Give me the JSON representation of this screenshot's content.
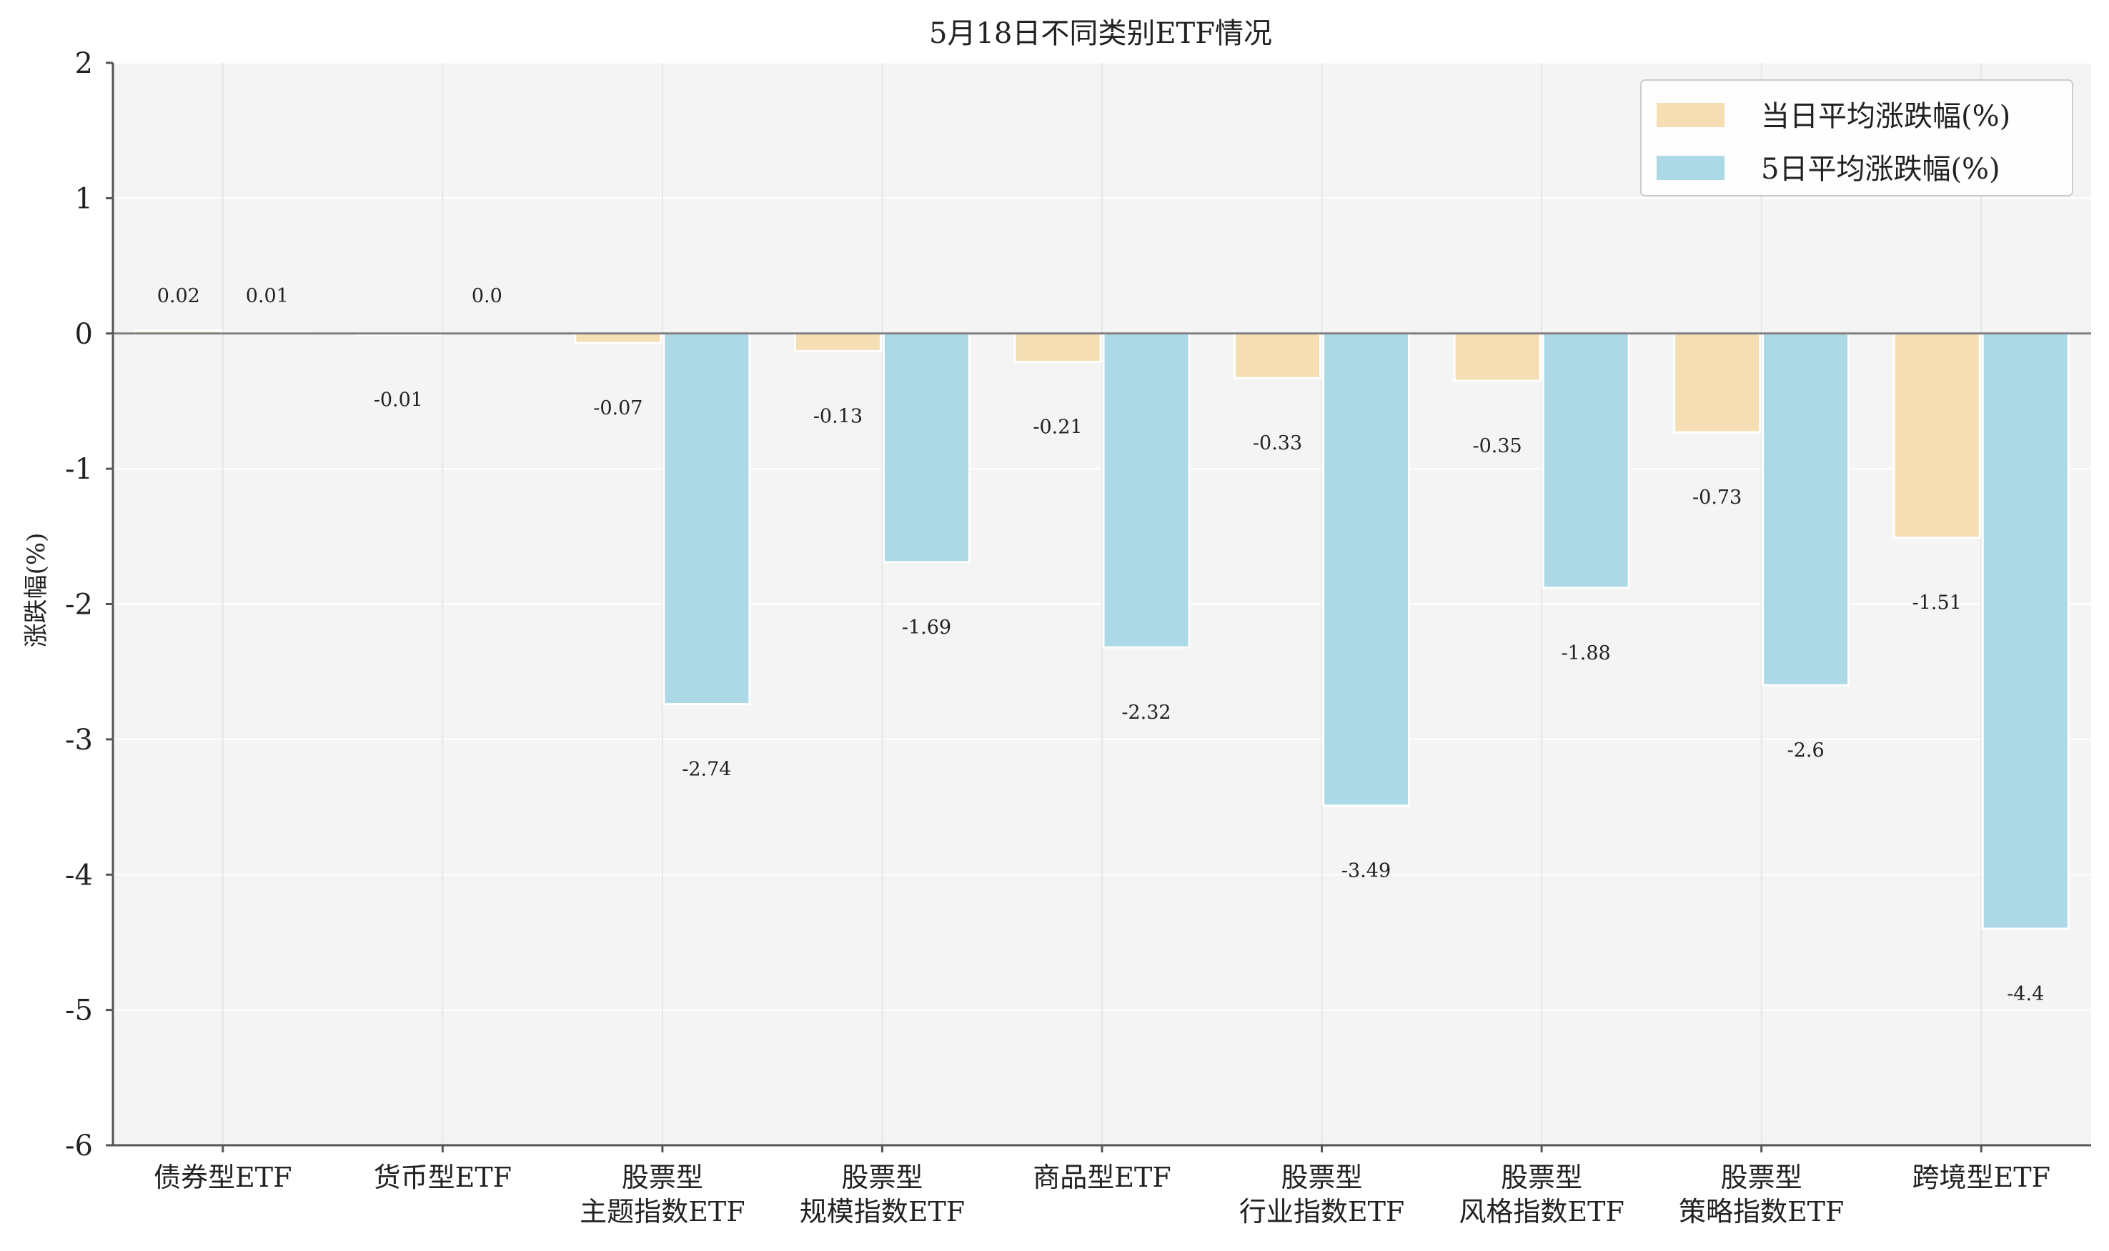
{
  "chart_data": {
    "type": "bar",
    "title": "5月18日不同类别ETF情况",
    "ylabel": "涨跌幅(%)",
    "xlabel": "",
    "ylim": [
      -6,
      2
    ],
    "yticks": [
      -6,
      -5,
      -4,
      -3,
      -2,
      -1,
      0,
      1,
      2
    ],
    "grid": true,
    "legend_position": "top-right",
    "categories": [
      [
        "债券型ETF"
      ],
      [
        "货币型ETF"
      ],
      [
        "股票型",
        "主题指数ETF"
      ],
      [
        "股票型",
        "规模指数ETF"
      ],
      [
        "商品型ETF"
      ],
      [
        "股票型",
        "行业指数ETF"
      ],
      [
        "股票型",
        "风格指数ETF"
      ],
      [
        "股票型",
        "策略指数ETF"
      ],
      [
        "跨境型ETF"
      ]
    ],
    "series": [
      {
        "name": "当日平均涨跌幅(%)",
        "color": "#f5deb3",
        "values": [
          0.02,
          -0.01,
          -0.07,
          -0.13,
          -0.21,
          -0.33,
          -0.35,
          -0.73,
          -1.51
        ],
        "labels": [
          "0.02",
          "-0.01",
          "-0.07",
          "-0.13",
          "-0.21",
          "-0.33",
          "-0.35",
          "-0.73",
          "-1.51"
        ]
      },
      {
        "name": "5日平均涨跌幅(%)",
        "color": "#add8e6",
        "values": [
          0.01,
          0.0,
          -2.74,
          -1.69,
          -2.32,
          -3.49,
          -1.88,
          -2.6,
          -4.4
        ],
        "labels": [
          "0.01",
          "0.0",
          "-2.74",
          "-1.69",
          "-2.32",
          "-3.49",
          "-1.88",
          "-2.6",
          "-4.4"
        ]
      }
    ],
    "colors": {
      "plot_background": "#f4f4f4",
      "gridline": "#ffffff",
      "zero_line": "#808080",
      "axis": "#555555",
      "text": "#222222"
    }
  }
}
